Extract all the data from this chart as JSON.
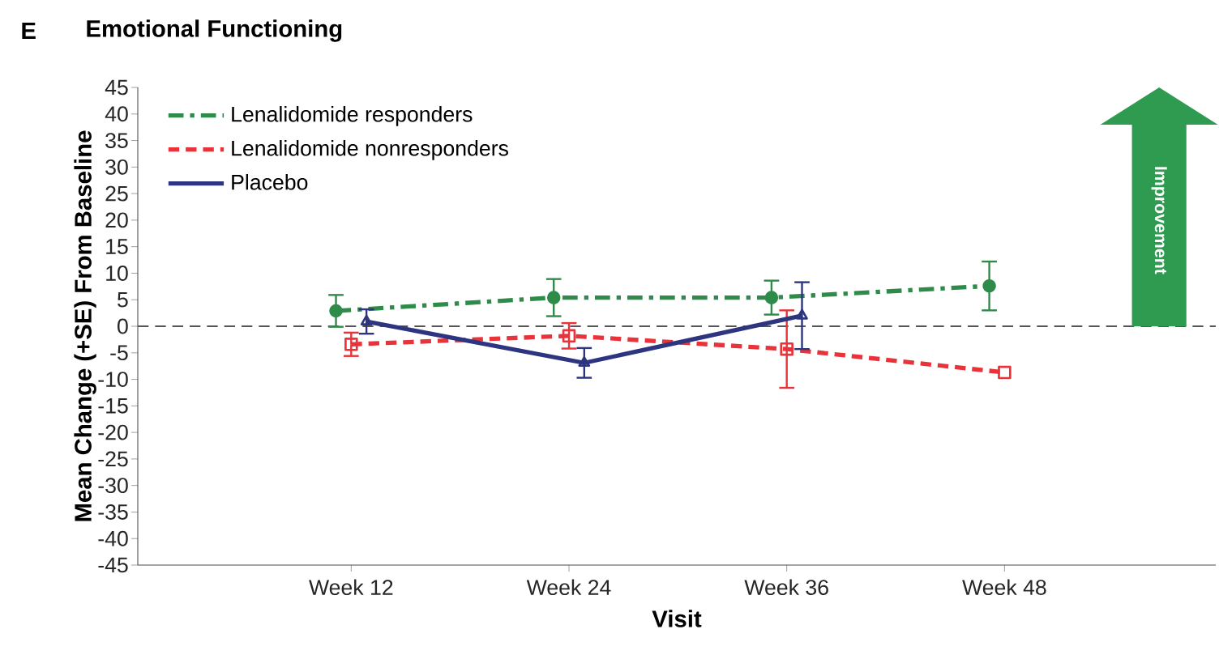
{
  "chart_data": {
    "type": "line",
    "title": "Emotional Functioning",
    "xlabel": "Visit",
    "ylabel": "Mean Change (+SE) From Baseline",
    "annotations": [
      "E",
      "Improvement"
    ],
    "categories": [
      "Week 12",
      "Week 24",
      "Week 36",
      "Week 48"
    ],
    "ylim": [
      -45,
      45
    ],
    "yticks": [
      -45,
      -40,
      -35,
      -30,
      -25,
      -20,
      -15,
      -10,
      -5,
      0,
      5,
      10,
      15,
      20,
      25,
      30,
      35,
      40,
      45
    ],
    "series": [
      {
        "name": "Lenalidomide responders",
        "color": "#2e8b4a",
        "marker": "circle",
        "line_style": "dashdot",
        "values": [
          2.9,
          5.4,
          5.4,
          7.6
        ],
        "errors": [
          3.0,
          3.5,
          3.2,
          4.6
        ]
      },
      {
        "name": "Lenalidomide nonresponders",
        "color": "#e8333a",
        "marker": "square",
        "line_style": "dashed",
        "values": [
          -3.4,
          -1.8,
          -4.3,
          -8.7
        ],
        "errors": [
          2.2,
          2.4,
          7.3,
          null
        ]
      },
      {
        "name": "Placebo",
        "color": "#2e3580",
        "marker": "triangle",
        "line_style": "solid",
        "values": [
          0.9,
          -6.9,
          2.0,
          null
        ],
        "errors": [
          2.3,
          2.8,
          6.3,
          null
        ]
      }
    ],
    "ref_lines": [
      {
        "axis": "y",
        "value": 0,
        "color": "#555555",
        "line_style": "dashed"
      }
    ],
    "legend": "top left",
    "grid": false
  }
}
